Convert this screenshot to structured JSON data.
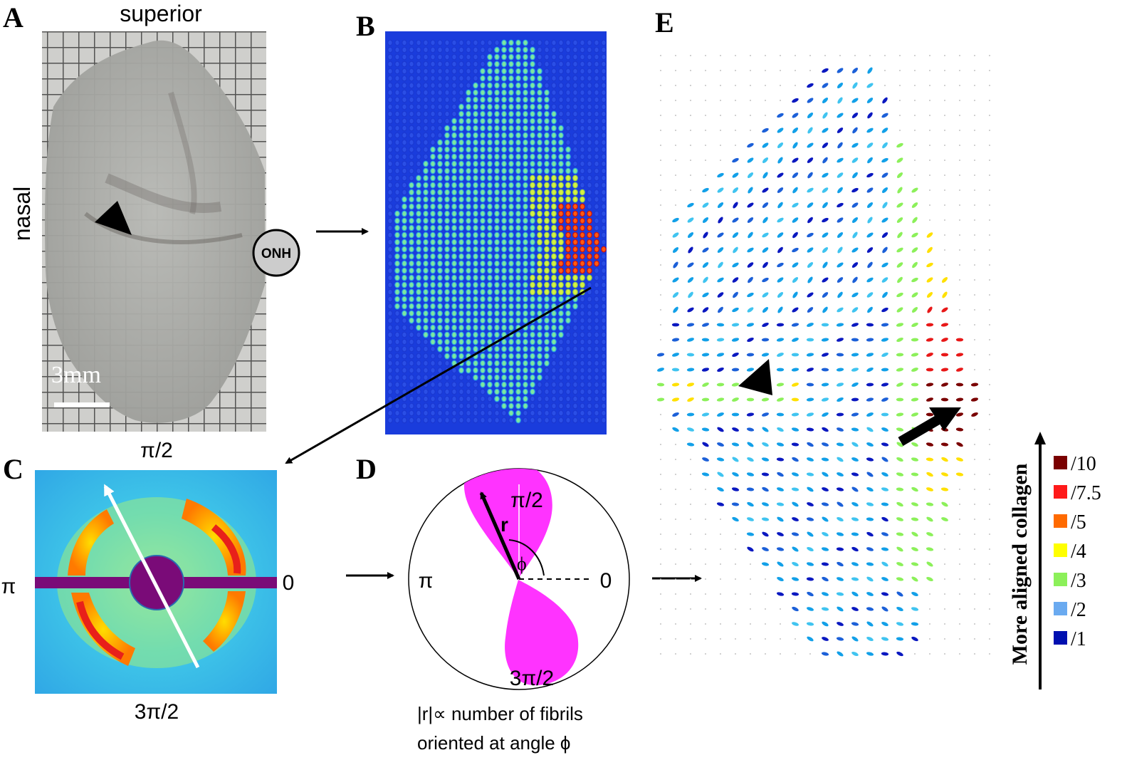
{
  "panels": {
    "a": {
      "letter": "A",
      "top": "superior",
      "left": "nasal",
      "onh": "ONH",
      "scale": "3mm"
    },
    "b": {
      "letter": "B"
    },
    "c": {
      "letter": "C",
      "top": "π/2",
      "left": "π",
      "right": "0",
      "bottom": "3π/2"
    },
    "d": {
      "letter": "D",
      "top": "π/2",
      "left": "π",
      "right": "0",
      "bottom": "3π/2",
      "r": "r",
      "phi": "ϕ",
      "caption1": "|r|∝ number of fibrils",
      "caption2": "oriented at angle ϕ"
    },
    "e": {
      "letter": "E"
    }
  },
  "legend": {
    "title": "More aligned collagen",
    "items": [
      {
        "label": "/10",
        "color": "#7a0000"
      },
      {
        "label": "/7.5",
        "color": "#ff1a1a"
      },
      {
        "label": "/5",
        "color": "#ff6a00"
      },
      {
        "label": "/4",
        "color": "#ffff00"
      },
      {
        "label": "/3",
        "color": "#8cf05a"
      },
      {
        "label": "/2",
        "color": "#6aaaf0"
      },
      {
        "label": "/1",
        "color": "#0010b0"
      }
    ]
  }
}
